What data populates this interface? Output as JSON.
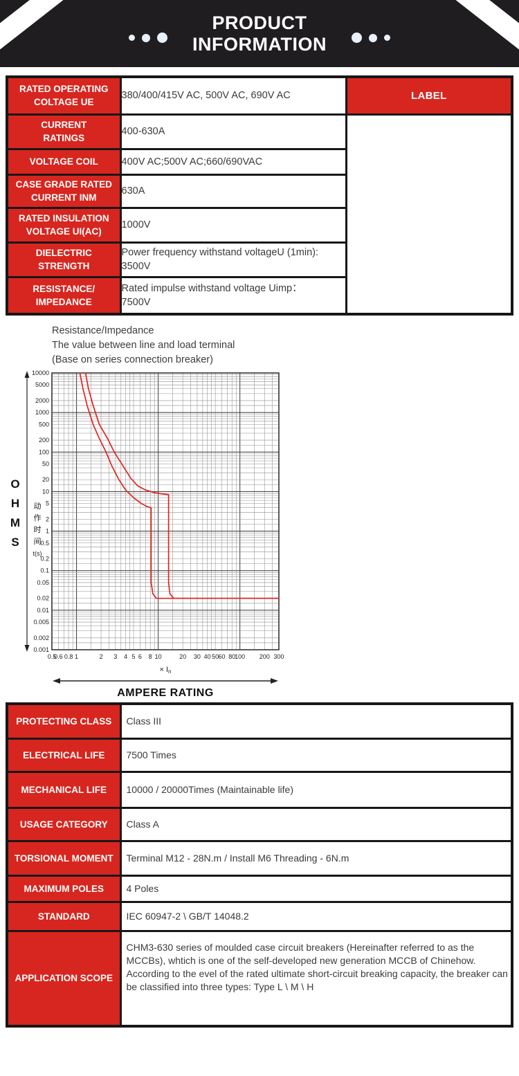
{
  "header": {
    "title_line1": "PRODUCT",
    "title_line2": "INFORMATION"
  },
  "colors": {
    "accent_red": "#d7261f",
    "banner_black": "#201d21",
    "border_black": "#171717",
    "dot_blue": "#e8f1fb"
  },
  "spec_table": {
    "label_column_header": "LABEL",
    "rows": [
      {
        "label": "RATED OPERATING\nCOLTAGE UE",
        "value": "380/400/415V AC, 500V AC, 690V AC"
      },
      {
        "label": "CURRENT\nRATINGS",
        "value": "400-630A"
      },
      {
        "label": "VOLTAGE COIL",
        "value": "400V AC;500V AC;660/690VAC"
      },
      {
        "label": "CASE GRADE RATED\nCURRENT INM",
        "value": "630A"
      },
      {
        "label": "RATED INSULATION\nVOLTAGE UI(AC)",
        "value": "1000V"
      },
      {
        "label": "DIELECTRIC\nSTRENGTH",
        "value": "Power frequency withstand voltageU (1min):\n3500V"
      },
      {
        "label": "RESISTANCE/\nIMPEDANCE",
        "value": "Rated impulse withstand voltage Uimp：\n7500V"
      }
    ]
  },
  "chart_data": {
    "type": "line",
    "title": "Resistance/Impedance",
    "subtitle1": "The value between line and load terminal",
    "subtitle2": "(Base on series connection breaker)",
    "left_label": "OHMS",
    "bottom_label": "AMPERE RATING",
    "curve_color": "#e02420",
    "grid": true,
    "x_axis": {
      "scale": "log",
      "min": 0.5,
      "max": 300,
      "tick_labels": [
        "0.5",
        "0.6",
        "0.8",
        "1",
        "2",
        "3",
        "4",
        "5",
        "6",
        "8",
        "10",
        "20",
        "30",
        "40",
        "50",
        "60",
        "80",
        "100",
        "200",
        "300"
      ],
      "unit_prefix": "× I",
      "unit_sub": "n"
    },
    "y_axis": {
      "scale": "log",
      "min": 0.001,
      "max": 10000,
      "tick_labels": [
        "10000",
        "5000",
        "2000",
        "1000",
        "500",
        "200",
        "100",
        "50",
        "20",
        "10",
        "5",
        "2",
        "1",
        "0.5",
        "0.2",
        "0.1",
        "0.05",
        "0.02",
        "0.01",
        "0.005",
        "0.002",
        "0.001"
      ],
      "label_vertical": [
        "动",
        "作",
        "时",
        "间",
        "t(s)"
      ]
    },
    "series": [
      {
        "name": "trip-curve-min",
        "points": [
          [
            1.1,
            10000
          ],
          [
            1.2,
            4000
          ],
          [
            1.35,
            1500
          ],
          [
            1.6,
            500
          ],
          [
            1.9,
            220
          ],
          [
            2.3,
            100
          ],
          [
            2.7,
            45
          ],
          [
            3.3,
            20
          ],
          [
            4,
            11
          ],
          [
            5,
            7
          ],
          [
            6.2,
            5
          ],
          [
            7.3,
            4.2
          ],
          [
            8.2,
            3.9
          ],
          [
            8.2,
            0.05
          ],
          [
            8.6,
            0.026
          ],
          [
            9.5,
            0.02
          ],
          [
            300,
            0.02
          ]
        ]
      },
      {
        "name": "trip-curve-max",
        "points": [
          [
            1.29,
            10000
          ],
          [
            1.4,
            4000
          ],
          [
            1.6,
            1500
          ],
          [
            1.9,
            500
          ],
          [
            2.4,
            220
          ],
          [
            2.9,
            100
          ],
          [
            3.7,
            45
          ],
          [
            4.6,
            22
          ],
          [
            5.6,
            14
          ],
          [
            7,
            11
          ],
          [
            9,
            9.4
          ],
          [
            11,
            8.8
          ],
          [
            13.4,
            8.4
          ],
          [
            13.4,
            0.05
          ],
          [
            13.9,
            0.026
          ],
          [
            15.5,
            0.02
          ],
          [
            300,
            0.02
          ]
        ]
      }
    ]
  },
  "detail_table": {
    "rows": [
      {
        "label": "PROTECTING CLASS",
        "value": "Class III"
      },
      {
        "label": "ELECTRICAL LIFE",
        "value": "7500 Times"
      },
      {
        "label": "MECHANICAL LIFE",
        "value": "10000 / 20000Times  (Maintainable life)"
      },
      {
        "label": "USAGE CATEGORY",
        "value": "Class A"
      },
      {
        "label": "TORSIONAL MOMENT",
        "value": "Terminal M12 - 28N.m / Install M6 Threading - 6N.m"
      },
      {
        "label": "MAXIMUM POLES",
        "value": "4 Poles"
      },
      {
        "label": "STANDARD",
        "value": "IEC 60947-2 \\ GB/T 14048.2"
      },
      {
        "label": "APPLICATION SCOPE",
        "value": "CHM3-630 series of moulded case circuit breakers (Hereinafter referred to as the MCCBs), whtich is one of the self-developed new generation MCCB of Chinehow. According to the evel of the rated ultimate short-circuit breaking capacity, the breaker can be classified into three types: Type L \\ M \\ H"
      }
    ]
  }
}
